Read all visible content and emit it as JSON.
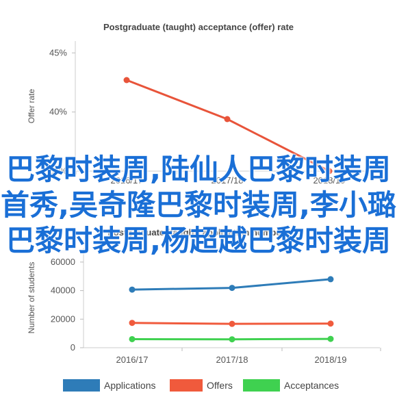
{
  "chart_data": [
    {
      "type": "line",
      "title": "Postgraduate (taught) acceptance (offer) rate",
      "xlabel": "",
      "ylabel": "Offer rate",
      "categories": [
        "2016/17",
        "2017/18",
        "2018/19"
      ],
      "series": [
        {
          "values": [
            42.7,
            39.4,
            35.0
          ],
          "color": "#e8543a"
        }
      ],
      "ylim": [
        35,
        46
      ],
      "yticks": [
        "35%",
        "40%",
        "45%"
      ],
      "ytick_values": [
        35,
        40,
        45
      ],
      "grid": false
    },
    {
      "type": "line",
      "title": "Postgraduate (taught) application numbers",
      "xlabel": "",
      "ylabel": "Number of students",
      "categories": [
        "2016/17",
        "2017/18",
        "2018/19"
      ],
      "series": [
        {
          "name": "Applications",
          "values": [
            40700,
            41900,
            48000
          ],
          "color": "#2e7cb8"
        },
        {
          "name": "Offers",
          "values": [
            17400,
            16700,
            16900
          ],
          "color": "#f05a3c"
        },
        {
          "name": "Acceptances",
          "values": [
            6000,
            5900,
            6200
          ],
          "color": "#3fd150"
        }
      ],
      "ylim": [
        0,
        70000
      ],
      "yticks": [
        "0",
        "20000",
        "40000",
        "60000"
      ],
      "ytick_values": [
        0,
        20000,
        40000,
        60000
      ],
      "legend_position": "bottom",
      "grid": false
    }
  ],
  "overlay": {
    "text": "巴黎时装周,陆仙人巴黎时装周首秀,吴奇隆巴黎时装周,李小璐巴黎时装周,杨超越巴黎时装周"
  }
}
